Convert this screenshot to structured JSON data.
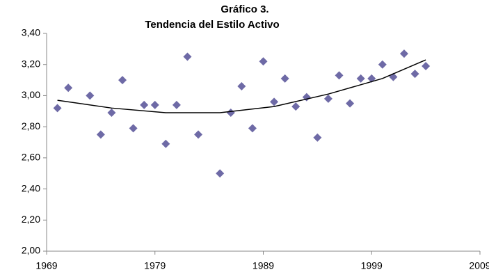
{
  "chart_data": {
    "type": "scatter",
    "title": [
      "Gráfico 3.",
      "Tendencia del Estilo Activo"
    ],
    "series": [
      {
        "color": "#6e6aa6",
        "marker": "diamond",
        "x": [
          1970,
          1971,
          1973,
          1974,
          1975,
          1976,
          1977,
          1978,
          1979,
          1980,
          1981,
          1982,
          1983,
          1985,
          1986,
          1987,
          1988,
          1989,
          1990,
          1991,
          1992,
          1993,
          1994,
          1995,
          1996,
          1997,
          1998,
          1999,
          2000,
          2001,
          2002,
          2003,
          2004
        ],
        "values": [
          2.92,
          3.05,
          3.0,
          2.75,
          2.89,
          3.1,
          2.79,
          2.94,
          2.94,
          2.69,
          2.94,
          3.25,
          2.75,
          2.5,
          2.89,
          3.06,
          2.79,
          3.22,
          2.96,
          3.11,
          2.93,
          2.99,
          2.73,
          2.98,
          3.13,
          2.95,
          3.11,
          3.11,
          3.2,
          3.12,
          3.27,
          3.14,
          3.19
        ]
      },
      {
        "color": "#000000",
        "marker": "trendline",
        "x": [
          1970,
          1975,
          1980,
          1985,
          1990,
          1995,
          2000,
          2004
        ],
        "values": [
          2.97,
          2.92,
          2.89,
          2.89,
          2.93,
          3.01,
          3.11,
          3.23
        ]
      }
    ],
    "xlim": [
      1969,
      2009
    ],
    "xticks": [
      1969,
      1979,
      1989,
      1999,
      2009
    ],
    "ylim": [
      2.0,
      3.4
    ],
    "yticks": [
      {
        "value": 2.0,
        "label": "2,00"
      },
      {
        "value": 2.2,
        "label": "2,20"
      },
      {
        "value": 2.4,
        "label": "2,40"
      },
      {
        "value": 2.6,
        "label": "2,60"
      },
      {
        "value": 2.8,
        "label": "2,80"
      },
      {
        "value": 3.0,
        "label": "3,00"
      },
      {
        "value": 3.2,
        "label": "3,20"
      },
      {
        "value": 3.4,
        "label": "3,40"
      }
    ],
    "grid": false
  }
}
